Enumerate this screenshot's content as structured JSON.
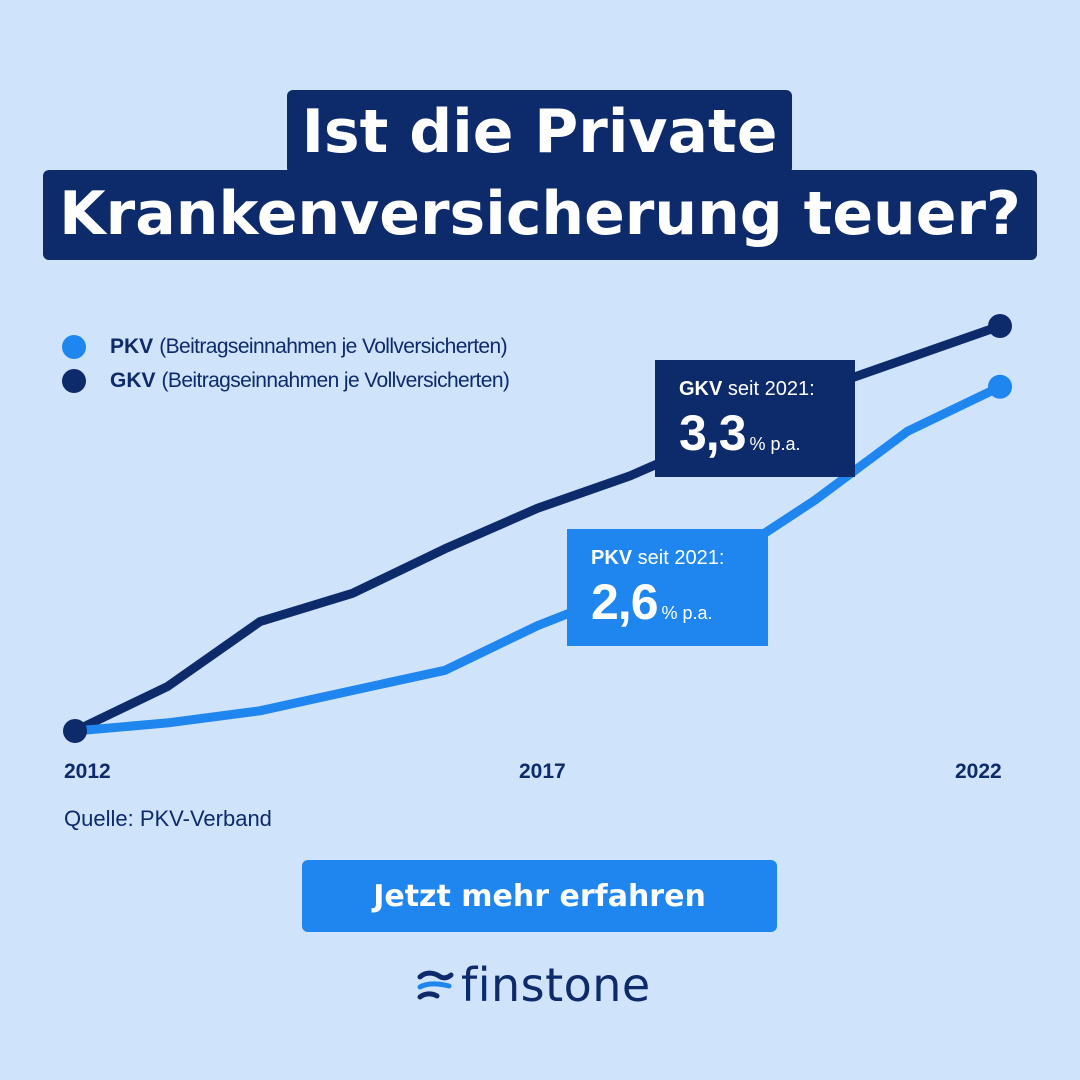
{
  "title": {
    "line1": "Ist die Private",
    "line2": "Krankenversicherung teuer?"
  },
  "legend": [
    {
      "key": "PKV",
      "desc": "(Beitragseinnahmen je Vollversicherten)",
      "color": "#1f86f0"
    },
    {
      "key": "GKV",
      "desc": "(Beitragseinnahmen je Vollversicherten)",
      "color": "#0d2a6b"
    }
  ],
  "callouts": {
    "gkv": {
      "key": "GKV",
      "text": " seit 2021:",
      "value": "3,3",
      "unit": "% p.a."
    },
    "pkv": {
      "key": "PKV",
      "text": " seit 2021:",
      "value": "2,6",
      "unit": "% p.a."
    }
  },
  "source": "Quelle: PKV-Verband",
  "cta": "Jetzt mehr erfahren",
  "brand": "finstone",
  "colors": {
    "background": "#cfe3fb",
    "navy": "#0d2a6b",
    "blue": "#1f86f0"
  },
  "chart_data": {
    "type": "line",
    "x_ticks": [
      "2012",
      "2017",
      "2022"
    ],
    "x": [
      2012,
      2013,
      2014,
      2015,
      2016,
      2017,
      2018,
      2019,
      2020,
      2021,
      2022
    ],
    "ylim": [
      0,
      100
    ],
    "grid": false,
    "legend_position": "top-left",
    "series": [
      {
        "name": "GKV",
        "color": "#0d2a6b",
        "values": [
          0,
          11,
          27,
          34,
          45,
          55,
          63,
          73,
          84,
          92,
          100
        ]
      },
      {
        "name": "PKV",
        "color": "#1f86f0",
        "values": [
          0,
          2,
          5,
          10,
          15,
          26,
          35,
          42,
          57,
          74,
          85
        ]
      }
    ]
  }
}
